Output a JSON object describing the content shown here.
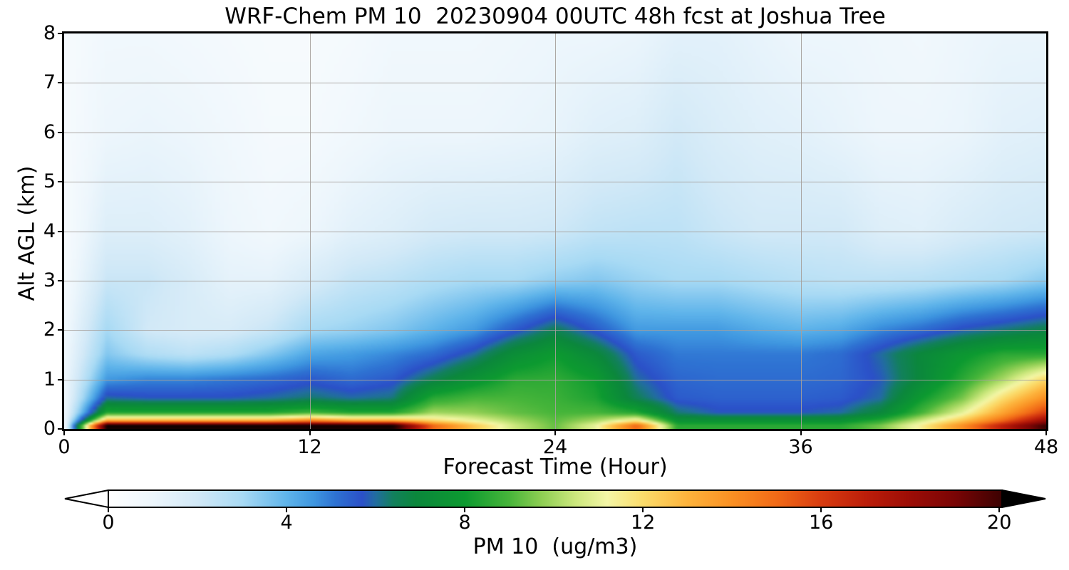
{
  "figure": {
    "title": "WRF-Chem PM 10  20230904 00UTC 48h fcst at Joshua Tree",
    "xlabel": "Forecast Time (Hour)",
    "ylabel": "Alt AGL (km)",
    "colorbar_label": "PM 10  (ug/m3)"
  },
  "axes": {
    "x_range": [
      0,
      48
    ],
    "y_range": [
      0,
      8
    ],
    "x_tick_values": [
      0,
      12,
      24,
      36,
      48
    ],
    "x_tick_labels": [
      "0",
      "12",
      "24",
      "36",
      "48"
    ],
    "y_tick_values": [
      0,
      1,
      2,
      3,
      4,
      5,
      6,
      7,
      8
    ],
    "y_tick_labels": [
      "0",
      "1",
      "2",
      "3",
      "4",
      "5",
      "6",
      "7",
      "8"
    ],
    "x_gridlines": [
      12,
      24,
      36
    ],
    "y_gridlines": [
      1,
      2,
      3,
      4,
      5,
      6,
      7
    ],
    "grid_on": true,
    "colorbar_range": [
      0,
      20.06
    ],
    "colorbar_tick_values": [
      0,
      4,
      8,
      12,
      16,
      20
    ],
    "colorbar_tick_labels": [
      "0",
      "4",
      "8",
      "12",
      "16",
      "20"
    ],
    "colorbar_extend": "both",
    "colorbar_under_color": "#ffffff",
    "colorbar_over_color": "#000000"
  },
  "chart_data": {
    "type": "heatmap",
    "title": "WRF-Chem PM 10  20230904 00UTC 48h fcst at Joshua Tree",
    "xlabel": "Forecast Time (Hour)",
    "ylabel": "Alt AGL (km)",
    "colorbar_label": "PM 10  (ug/m3)",
    "legend": "none",
    "xlim": [
      0,
      48
    ],
    "ylim": [
      0,
      8
    ],
    "x_hours": [
      0,
      2,
      4,
      6,
      8,
      10,
      12,
      14,
      16,
      18,
      20,
      22,
      24,
      26,
      28,
      30,
      32,
      34,
      36,
      38,
      40,
      42,
      44,
      46,
      48
    ],
    "alt_km": [
      0.05,
      0.15,
      0.3,
      0.6,
      1.0,
      1.5,
      2.0,
      3.0,
      4.0,
      6.0,
      8.0
    ],
    "values_ug_m3_by_hour_then_alt": [
      [
        1.2,
        1.2,
        1.1,
        1.0,
        1.0,
        0.9,
        0.8,
        0.6,
        0.5,
        0.5,
        0.5
      ],
      [
        21.0,
        13.0,
        8.5,
        6.0,
        4.5,
        3.5,
        3.0,
        2.2,
        1.6,
        1.0,
        0.8
      ],
      [
        21.0,
        13.0,
        8.5,
        5.8,
        4.8,
        2.8,
        2.0,
        2.2,
        1.6,
        1.1,
        0.8
      ],
      [
        21.0,
        13.0,
        8.5,
        5.8,
        4.8,
        2.5,
        1.8,
        1.8,
        1.4,
        1.0,
        0.7
      ],
      [
        21.0,
        13.0,
        8.5,
        5.8,
        5.0,
        2.8,
        1.8,
        1.3,
        1.0,
        0.8,
        0.6
      ],
      [
        21.0,
        13.0,
        8.5,
        6.0,
        5.2,
        3.5,
        2.2,
        1.3,
        0.8,
        0.6,
        0.5
      ],
      [
        21.0,
        14.0,
        9.0,
        6.3,
        5.5,
        4.3,
        3.0,
        1.8,
        1.0,
        0.6,
        0.5
      ],
      [
        21.0,
        13.0,
        8.5,
        6.0,
        5.2,
        4.5,
        3.2,
        2.3,
        1.4,
        0.8,
        0.6
      ],
      [
        21.0,
        13.0,
        8.5,
        6.2,
        5.5,
        4.8,
        3.5,
        2.5,
        1.6,
        1.0,
        0.8
      ],
      [
        15.0,
        12.0,
        10.0,
        8.5,
        6.5,
        5.2,
        4.0,
        2.8,
        1.9,
        1.0,
        0.8
      ],
      [
        12.5,
        11.0,
        9.8,
        9.0,
        7.5,
        6.0,
        4.5,
        3.0,
        2.0,
        1.0,
        0.8
      ],
      [
        10.5,
        10.0,
        9.3,
        9.0,
        8.5,
        7.3,
        5.5,
        3.0,
        2.0,
        1.1,
        0.9
      ],
      [
        9.3,
        9.2,
        9.0,
        8.8,
        8.6,
        8.0,
        6.5,
        3.3,
        2.1,
        1.2,
        1.0
      ],
      [
        11.0,
        10.0,
        9.0,
        8.3,
        8.0,
        7.0,
        5.5,
        3.5,
        2.4,
        1.5,
        1.0
      ],
      [
        15.0,
        11.5,
        8.5,
        6.5,
        6.0,
        5.5,
        4.5,
        3.2,
        2.5,
        1.6,
        1.1
      ],
      [
        8.5,
        7.5,
        6.3,
        5.5,
        5.3,
        5.0,
        4.5,
        3.0,
        2.5,
        2.0,
        1.4
      ],
      [
        8.5,
        7.5,
        5.8,
        5.4,
        5.2,
        5.0,
        4.5,
        3.0,
        2.2,
        1.7,
        1.4
      ],
      [
        8.5,
        7.5,
        5.8,
        5.4,
        5.2,
        5.0,
        4.2,
        2.8,
        2.0,
        1.5,
        1.2
      ],
      [
        8.5,
        7.5,
        5.8,
        5.4,
        5.2,
        5.0,
        4.0,
        2.6,
        2.0,
        1.4,
        1.0
      ],
      [
        8.5,
        7.5,
        6.0,
        5.5,
        5.3,
        5.2,
        4.2,
        2.5,
        2.0,
        1.2,
        1.0
      ],
      [
        9.5,
        8.5,
        7.0,
        6.0,
        5.8,
        6.0,
        4.8,
        2.5,
        1.6,
        1.0,
        0.9
      ],
      [
        11.5,
        10.5,
        9.0,
        8.0,
        7.0,
        7.0,
        5.2,
        2.6,
        1.5,
        1.0,
        0.8
      ],
      [
        14.0,
        12.5,
        11.0,
        9.5,
        8.5,
        7.8,
        5.8,
        2.8,
        1.8,
        1.1,
        1.0
      ],
      [
        17.0,
        15.0,
        13.5,
        12.0,
        10.0,
        8.5,
        6.2,
        3.0,
        2.0,
        1.4,
        1.1
      ],
      [
        20.0,
        18.0,
        16.0,
        14.0,
        12.0,
        8.5,
        6.6,
        3.4,
        2.1,
        1.5,
        1.1
      ]
    ],
    "colormap_stops": [
      [
        0.0,
        "#ffffff"
      ],
      [
        1.0,
        "#edf6fc"
      ],
      [
        2.0,
        "#d2e9f7"
      ],
      [
        3.0,
        "#a8daf4"
      ],
      [
        4.0,
        "#5fb4ea"
      ],
      [
        4.6,
        "#3f97e0"
      ],
      [
        5.1,
        "#2e72d2"
      ],
      [
        5.7,
        "#2b50c8"
      ],
      [
        6.0,
        "#226da0"
      ],
      [
        6.4,
        "#12805c"
      ],
      [
        6.9,
        "#0b873c"
      ],
      [
        8.0,
        "#0c9a30"
      ],
      [
        9.0,
        "#47b53a"
      ],
      [
        9.7,
        "#8ccd52"
      ],
      [
        10.5,
        "#cde87e"
      ],
      [
        11.2,
        "#f4f6a6"
      ],
      [
        12.0,
        "#fbdc6b"
      ],
      [
        13.0,
        "#fdb33c"
      ],
      [
        14.0,
        "#fa9023"
      ],
      [
        15.0,
        "#f16a17"
      ],
      [
        16.0,
        "#d83c10"
      ],
      [
        17.0,
        "#bc1e0a"
      ],
      [
        18.0,
        "#9c0d06"
      ],
      [
        19.0,
        "#7a0505"
      ],
      [
        20.06,
        "#3c0202"
      ],
      [
        21.5,
        "#000000"
      ]
    ]
  },
  "layout_colors": {
    "grid": "#a5a09b",
    "spine": "#000000",
    "background": "#ffffff"
  }
}
